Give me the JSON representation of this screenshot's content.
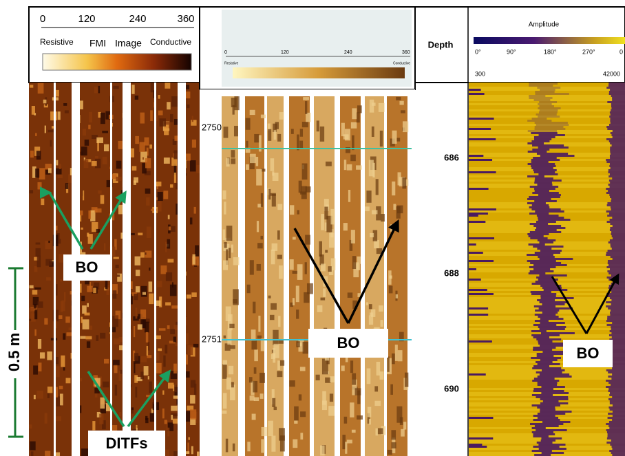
{
  "scale_bar": {
    "label": "0.5 m"
  },
  "panel_fmi": {
    "scale_ticks": [
      "0",
      "120",
      "240",
      "360"
    ],
    "left_label": "Resistive",
    "title_1": "FMI",
    "title_2": "Image",
    "right_label": "Conductive",
    "annotations": [
      "BO",
      "DITFs"
    ]
  },
  "panel_middle": {
    "scale_ticks": [
      "0",
      "120",
      "240",
      "360"
    ],
    "left_label": "Resistive",
    "right_label": "Conductive",
    "depths": [
      "2750",
      "2751"
    ],
    "annotation": "BO"
  },
  "panel_amplitude": {
    "depth_header": "Depth",
    "title": "Amplitude",
    "angle_ticks": [
      "0°",
      "90°",
      "180°",
      "270°",
      "0"
    ],
    "range_min": "300",
    "range_max": "42000",
    "depths": [
      "686",
      "688",
      "690"
    ],
    "annotation": "BO"
  }
}
